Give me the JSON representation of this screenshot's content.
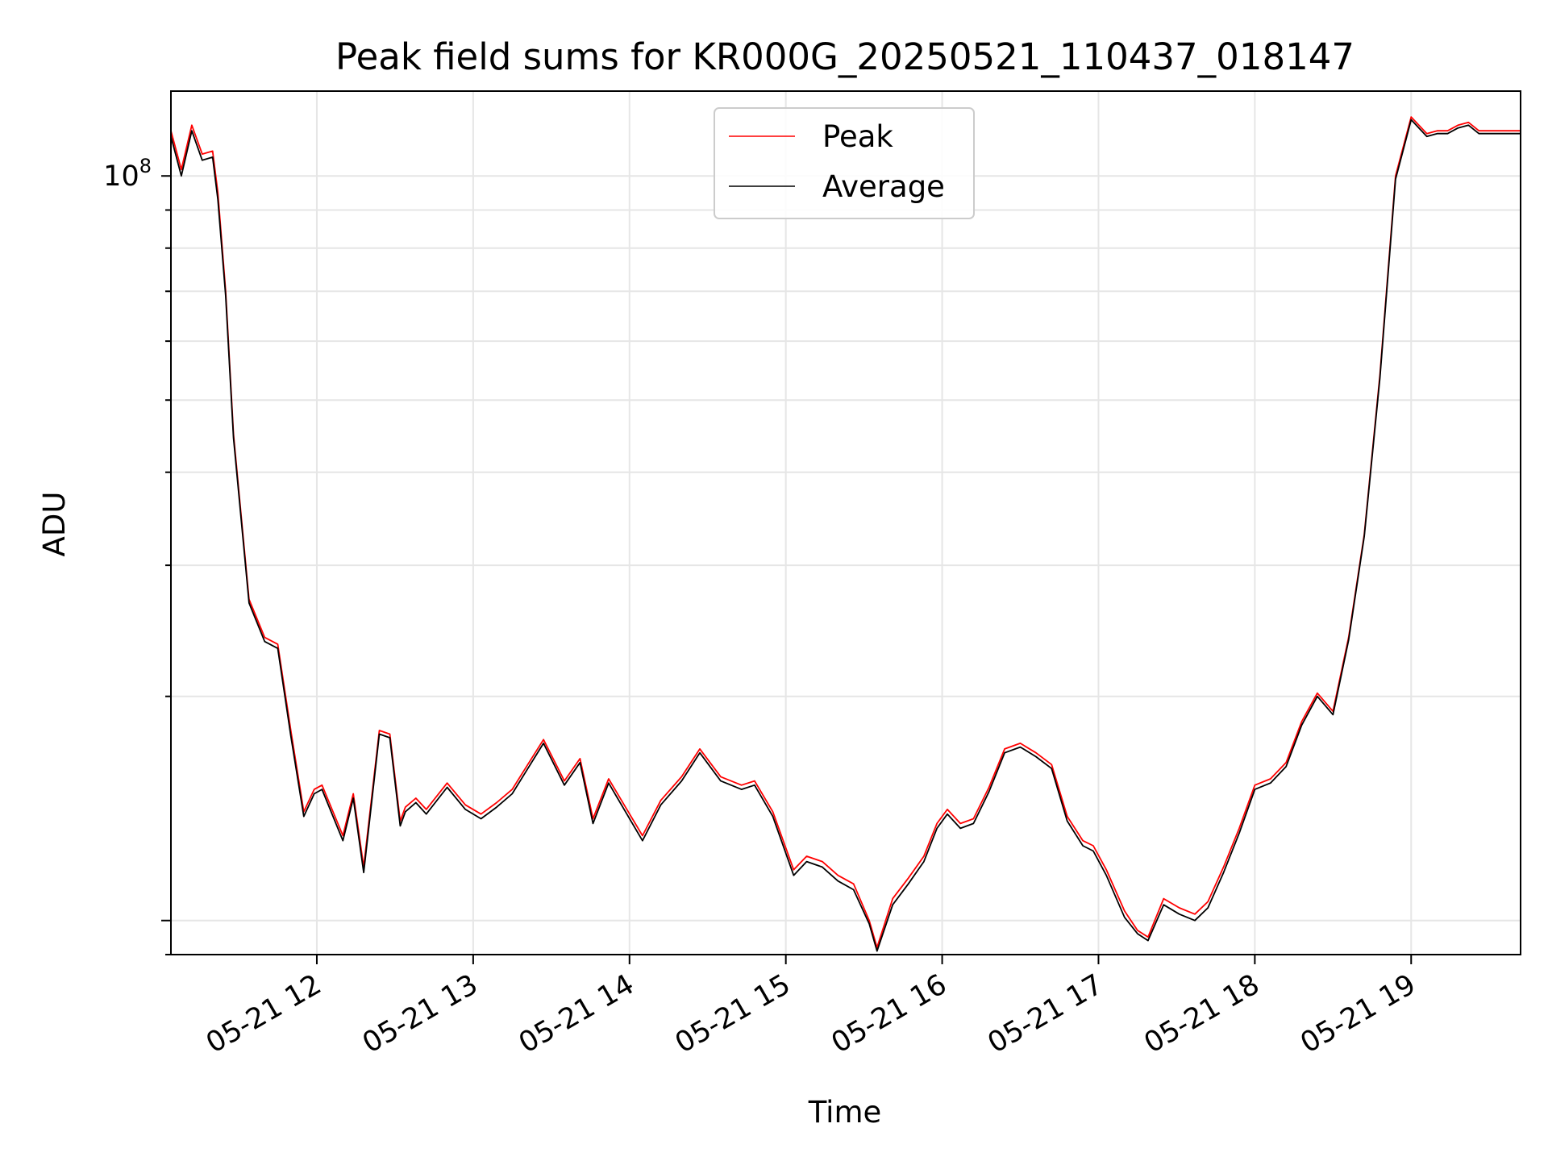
{
  "chart_data": {
    "type": "line",
    "title": "Peak field sums for KR000G_20250521_110437_018147",
    "xlabel": "Time",
    "ylabel": "ADU",
    "x_scale": "time",
    "y_scale": "log",
    "xlim": [
      "2025-05-21 11:04",
      "2025-05-21 19:42"
    ],
    "ylim": [
      9000000,
      130000000
    ],
    "x_ticks": [
      "05-21 12",
      "05-21 13",
      "05-21 14",
      "05-21 15",
      "05-21 16",
      "05-21 17",
      "05-21 18",
      "05-21 19"
    ],
    "y_major_tick": "10^8",
    "grid": true,
    "legend_position": "upper center",
    "colors": {
      "Peak": "#ff0000",
      "Average": "#000000"
    },
    "x": [
      "2025-05-21 11:04",
      "2025-05-21 11:08",
      "2025-05-21 11:12",
      "2025-05-21 11:16",
      "2025-05-21 11:20",
      "2025-05-21 11:22",
      "2025-05-21 11:25",
      "2025-05-21 11:28",
      "2025-05-21 11:34",
      "2025-05-21 11:40",
      "2025-05-21 11:45",
      "2025-05-21 11:50",
      "2025-05-21 11:55",
      "2025-05-21 11:59",
      "2025-05-21 12:02",
      "2025-05-21 12:10",
      "2025-05-21 12:14",
      "2025-05-21 12:18",
      "2025-05-21 12:24",
      "2025-05-21 12:28",
      "2025-05-21 12:32",
      "2025-05-21 12:34",
      "2025-05-21 12:38",
      "2025-05-21 12:42",
      "2025-05-21 12:50",
      "2025-05-21 12:57",
      "2025-05-21 13:03",
      "2025-05-21 13:09",
      "2025-05-21 13:15",
      "2025-05-21 13:20",
      "2025-05-21 13:27",
      "2025-05-21 13:35",
      "2025-05-21 13:41",
      "2025-05-21 13:46",
      "2025-05-21 13:52",
      "2025-05-21 13:59",
      "2025-05-21 14:05",
      "2025-05-21 14:12",
      "2025-05-21 14:20",
      "2025-05-21 14:27",
      "2025-05-21 14:35",
      "2025-05-21 14:43",
      "2025-05-21 14:48",
      "2025-05-21 14:55",
      "2025-05-21 15:03",
      "2025-05-21 15:08",
      "2025-05-21 15:14",
      "2025-05-21 15:20",
      "2025-05-21 15:26",
      "2025-05-21 15:32",
      "2025-05-21 15:35",
      "2025-05-21 15:41",
      "2025-05-21 15:47",
      "2025-05-21 15:53",
      "2025-05-21 15:58",
      "2025-05-21 16:02",
      "2025-05-21 16:07",
      "2025-05-21 16:12",
      "2025-05-21 16:18",
      "2025-05-21 16:24",
      "2025-05-21 16:30",
      "2025-05-21 16:36",
      "2025-05-21 16:42",
      "2025-05-21 16:48",
      "2025-05-21 16:54",
      "2025-05-21 16:58",
      "2025-05-21 17:03",
      "2025-05-21 17:10",
      "2025-05-21 17:15",
      "2025-05-21 17:19",
      "2025-05-21 17:25",
      "2025-05-21 17:31",
      "2025-05-21 17:37",
      "2025-05-21 17:42",
      "2025-05-21 17:48",
      "2025-05-21 17:54",
      "2025-05-21 18:00",
      "2025-05-21 18:06",
      "2025-05-21 18:12",
      "2025-05-21 18:18",
      "2025-05-21 18:24",
      "2025-05-21 18:30",
      "2025-05-21 18:36",
      "2025-05-21 18:42",
      "2025-05-21 18:48",
      "2025-05-21 18:54",
      "2025-05-21 19:00",
      "2025-05-21 19:06",
      "2025-05-21 19:10",
      "2025-05-21 19:14",
      "2025-05-21 19:18",
      "2025-05-21 19:22",
      "2025-05-21 19:26",
      "2025-05-21 19:30",
      "2025-05-21 19:34",
      "2025-05-21 19:38",
      "2025-05-21 19:42"
    ],
    "series": [
      {
        "name": "Peak",
        "values": [
          115000000,
          102000000,
          117000000,
          107000000,
          108000000,
          95000000,
          70000000,
          45000000,
          27000000,
          24000000,
          23500000,
          18000000,
          14000000,
          15000000,
          15200000,
          13000000,
          14800000,
          11800000,
          18000000,
          17800000,
          13600000,
          14200000,
          14600000,
          14100000,
          15300000,
          14300000,
          13900000,
          14400000,
          15000000,
          16000000,
          17500000,
          15400000,
          16500000,
          13700000,
          15500000,
          14100000,
          13000000,
          14500000,
          15600000,
          17000000,
          15600000,
          15200000,
          15400000,
          14000000,
          11700000,
          12200000,
          12000000,
          11500000,
          11200000,
          10000000,
          9200000,
          10700000,
          11400000,
          12200000,
          13500000,
          14100000,
          13500000,
          13700000,
          15100000,
          17000000,
          17300000,
          16800000,
          16200000,
          13800000,
          12800000,
          12600000,
          11700000,
          10300000,
          9700000,
          9500000,
          10700000,
          10400000,
          10200000,
          10600000,
          11800000,
          13300000,
          15200000,
          15500000,
          16300000,
          18500000,
          20200000,
          19100000,
          24000000,
          33000000,
          54000000,
          100000000,
          120000000,
          114000000,
          115000000,
          115000000,
          117000000,
          118000000,
          115000000,
          115000000,
          115000000,
          115000000,
          115000000
        ]
      },
      {
        "name": "Average",
        "values": [
          113000000,
          100000000,
          115000000,
          105000000,
          106000000,
          93000000,
          69000000,
          44500000,
          26700000,
          23700000,
          23200000,
          17700000,
          13800000,
          14800000,
          15000000,
          12800000,
          14600000,
          11600000,
          17800000,
          17600000,
          13400000,
          14000000,
          14400000,
          13900000,
          15100000,
          14100000,
          13700000,
          14200000,
          14800000,
          15800000,
          17300000,
          15200000,
          16300000,
          13500000,
          15300000,
          13900000,
          12800000,
          14300000,
          15400000,
          16800000,
          15400000,
          15000000,
          15200000,
          13800000,
          11500000,
          12000000,
          11800000,
          11300000,
          11000000,
          9900000,
          9100000,
          10500000,
          11200000,
          12000000,
          13300000,
          13900000,
          13300000,
          13500000,
          14900000,
          16800000,
          17100000,
          16600000,
          16000000,
          13600000,
          12600000,
          12400000,
          11500000,
          10100000,
          9600000,
          9400000,
          10500000,
          10200000,
          10000000,
          10400000,
          11600000,
          13100000,
          15000000,
          15300000,
          16100000,
          18300000,
          20000000,
          18900000,
          23800000,
          32800000,
          53500000,
          99000000,
          119000000,
          113000000,
          114000000,
          114000000,
          116000000,
          117000000,
          114000000,
          114000000,
          114000000,
          114000000,
          114000000
        ]
      }
    ]
  }
}
